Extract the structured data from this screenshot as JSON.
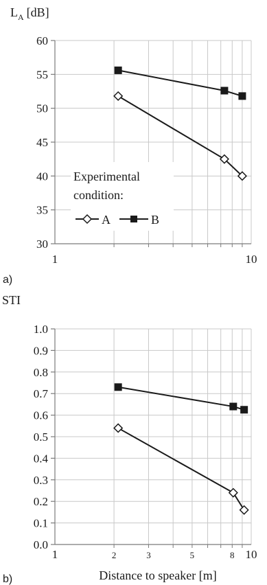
{
  "chart_data": [
    {
      "panel_label": "a)",
      "type": "line",
      "ylabel": "L",
      "ylabel_sub": "A",
      "ylabel_unit": "[dB]",
      "xlabel": "",
      "x_scale": "log",
      "xlim": [
        1,
        10
      ],
      "ylim": [
        30,
        60
      ],
      "y_ticks": [
        "30",
        "35",
        "40",
        "45",
        "50",
        "55",
        "60"
      ],
      "x_ticks": [
        {
          "value": 1,
          "label": "1"
        },
        {
          "value": 10,
          "label": "10"
        }
      ],
      "grid": true,
      "legend": {
        "title_line1": "Experimental",
        "title_line2": "condition:",
        "placement": "lower-left"
      },
      "series": [
        {
          "name": "A",
          "marker": "open-diamond",
          "x": [
            2.1,
            7.3,
            9.0
          ],
          "y": [
            51.8,
            42.5,
            40.0
          ]
        },
        {
          "name": "B",
          "marker": "filled-square",
          "x": [
            2.1,
            7.3,
            9.0
          ],
          "y": [
            55.6,
            52.6,
            51.8
          ]
        }
      ]
    },
    {
      "panel_label": "b)",
      "type": "line",
      "ylabel": "STI",
      "xlabel": "Distance to speaker [m]",
      "x_scale": "log",
      "xlim": [
        1,
        10
      ],
      "ylim": [
        0,
        1
      ],
      "y_ticks": [
        "0.0",
        "0.1",
        "0.2",
        "0.3",
        "0.4",
        "0.5",
        "0.6",
        "0.7",
        "0.8",
        "0.9",
        "1.0"
      ],
      "x_ticks": [
        {
          "value": 1,
          "label": "1"
        },
        {
          "value": 2,
          "label": "2"
        },
        {
          "value": 3,
          "label": "3"
        },
        {
          "value": 5,
          "label": "5"
        },
        {
          "value": 8,
          "label": "8"
        },
        {
          "value": 10,
          "label": "10"
        }
      ],
      "grid": true,
      "series": [
        {
          "name": "A",
          "marker": "open-diamond",
          "x": [
            2.1,
            8.1,
            9.2
          ],
          "y": [
            0.54,
            0.24,
            0.16
          ]
        },
        {
          "name": "B",
          "marker": "filled-square",
          "x": [
            2.1,
            8.1,
            9.2
          ],
          "y": [
            0.73,
            0.64,
            0.625
          ]
        }
      ]
    }
  ]
}
